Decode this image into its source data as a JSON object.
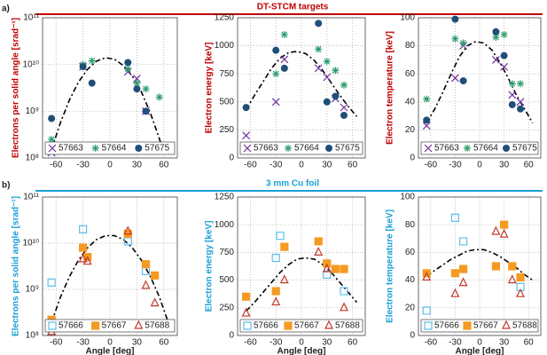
{
  "sections": [
    {
      "label": "a)",
      "title": "DT-STCM targets",
      "color": "#c00000"
    },
    {
      "label": "b)",
      "title": "3 mm Cu foil",
      "color": "#1a9fd6"
    }
  ],
  "chart_data": [
    {
      "type": "scatter",
      "ylabel": "Electrons per solid angle [srad⁻¹]",
      "label_color": "#c00000",
      "log_y": true,
      "grid": true,
      "xlim": [
        -75,
        75
      ],
      "xticks": [
        -60,
        -30,
        0,
        30,
        60
      ],
      "ylim": [
        100000000,
        100000000000
      ],
      "yticks": [
        {
          "value": 100000000,
          "label": "10⁸"
        },
        {
          "value": 1000000000,
          "label": "10⁹"
        },
        {
          "value": 10000000000,
          "label": "10¹⁰"
        },
        {
          "value": 100000000000,
          "label": "10¹¹"
        }
      ],
      "series": [
        {
          "name": "57663",
          "color": "#7030a0",
          "marker": "x",
          "x": [
            -65,
            -30,
            20,
            30,
            40
          ],
          "values": [
            130000000,
            9000000000,
            7000000000,
            5000000000,
            1000000000
          ]
        },
        {
          "name": "57664",
          "color": "#2e9e6e",
          "marker": "asterisk",
          "x": [
            -65,
            -30,
            -20,
            20,
            30,
            40,
            55
          ],
          "values": [
            250000000,
            10000000000,
            12000000000,
            8000000000,
            4000000000,
            3000000000,
            2000000000
          ]
        },
        {
          "name": "57675",
          "color": "#1f4e79",
          "marker": "dot",
          "x": [
            -65,
            -30,
            -20,
            20,
            30,
            40
          ],
          "values": [
            700000000,
            9000000000,
            4000000000,
            11000000000,
            3000000000,
            1000000000
          ]
        }
      ],
      "fit": {
        "color": "#000000",
        "x": [
          -65,
          -55,
          -45,
          -35,
          -25,
          -15,
          -5,
          5,
          15,
          25,
          35,
          45,
          55,
          60
        ],
        "values": [
          150000000,
          580000000,
          1750000000,
          4200000000,
          7900000000,
          11800000000,
          14000000000,
          13000000000,
          9500000000,
          5600000000,
          2600000000,
          920000000,
          260000000,
          130000000
        ]
      }
    },
    {
      "type": "scatter",
      "ylabel": "Electron energy [keV]",
      "label_color": "#c00000",
      "log_y": false,
      "grid": true,
      "xlim": [
        -75,
        75
      ],
      "xticks": [
        -60,
        -30,
        0,
        30,
        60
      ],
      "ylim": [
        0,
        1250
      ],
      "yticks": [
        0,
        250,
        500,
        750,
        1000,
        1250
      ],
      "series": [
        {
          "name": "57663",
          "color": "#7030a0",
          "marker": "x",
          "x": [
            -65,
            -30,
            -20,
            20,
            30,
            40,
            50
          ],
          "values": [
            200,
            500,
            880,
            800,
            720,
            530,
            450
          ]
        },
        {
          "name": "57664",
          "color": "#2e9e6e",
          "marker": "asterisk",
          "x": [
            -30,
            -20,
            20,
            30,
            40,
            50
          ],
          "values": [
            750,
            1100,
            970,
            860,
            780,
            650
          ]
        },
        {
          "name": "57675",
          "color": "#1f4e79",
          "marker": "dot",
          "x": [
            -65,
            -30,
            -20,
            20,
            30,
            40,
            50
          ],
          "values": [
            450,
            960,
            800,
            1200,
            500,
            550,
            380
          ]
        }
      ],
      "fit": {
        "color": "#000000",
        "x": [
          -65,
          -55,
          -45,
          -35,
          -25,
          -15,
          -5,
          5,
          15,
          25,
          35,
          45,
          55,
          65
        ],
        "values": [
          430,
          560,
          680,
          800,
          890,
          940,
          950,
          930,
          870,
          780,
          670,
          560,
          460,
          370
        ]
      }
    },
    {
      "type": "scatter",
      "ylabel": "Electron temperature [keV]",
      "label_color": "#c00000",
      "log_y": false,
      "grid": true,
      "xlim": [
        -75,
        75
      ],
      "xticks": [
        -60,
        -30,
        0,
        30,
        60
      ],
      "ylim": [
        0,
        100
      ],
      "yticks": [
        0,
        20,
        40,
        60,
        80,
        100
      ],
      "series": [
        {
          "name": "57663",
          "color": "#7030a0",
          "marker": "x",
          "x": [
            -65,
            -30,
            -20,
            20,
            30,
            40,
            50
          ],
          "values": [
            23,
            57,
            80,
            70,
            65,
            45,
            40
          ]
        },
        {
          "name": "57664",
          "color": "#2e9e6e",
          "marker": "asterisk",
          "x": [
            -65,
            -30,
            -20,
            20,
            30,
            40,
            50
          ],
          "values": [
            42,
            85,
            82,
            86,
            88,
            53,
            53
          ]
        },
        {
          "name": "57675",
          "color": "#1f4e79",
          "marker": "dot",
          "x": [
            -65,
            -30,
            -20,
            20,
            30,
            40,
            50
          ],
          "values": [
            27,
            99,
            55,
            90,
            73,
            38,
            35
          ]
        }
      ],
      "fit": {
        "color": "#000000",
        "x": [
          -65,
          -55,
          -45,
          -35,
          -25,
          -15,
          -5,
          5,
          15,
          25,
          35,
          45,
          55,
          65
        ],
        "values": [
          25,
          35,
          47,
          60,
          72,
          80,
          83,
          82,
          77,
          68,
          57,
          45,
          35,
          25
        ]
      }
    },
    {
      "type": "scatter",
      "ylabel": "Electrons per solid angle [srad⁻¹]",
      "xlabel": "Angle [deg]",
      "label_color": "#1a9fd6",
      "log_y": true,
      "grid": true,
      "xlim": [
        -75,
        75
      ],
      "xticks": [
        -60,
        -30,
        0,
        30,
        60
      ],
      "ylim": [
        100000000,
        100000000000
      ],
      "yticks": [
        {
          "value": 100000000,
          "label": "10⁸"
        },
        {
          "value": 1000000000,
          "label": "10⁹"
        },
        {
          "value": 10000000000,
          "label": "10¹⁰"
        },
        {
          "value": 100000000000,
          "label": "10¹¹"
        }
      ],
      "series": [
        {
          "name": "57666",
          "color": "#5bc0eb",
          "marker": "open-square",
          "x": [
            -65,
            -30,
            20,
            40
          ],
          "values": [
            1400000000,
            20000000000,
            11000000000,
            2500000000
          ]
        },
        {
          "name": "57667",
          "color": "#f59a23",
          "marker": "square",
          "x": [
            -65,
            -30,
            -25,
            20,
            40,
            50
          ],
          "values": [
            220000000,
            8000000000,
            5000000000,
            16000000000,
            3500000000,
            2000000000
          ]
        },
        {
          "name": "57688",
          "color": "#c0392b",
          "marker": "open-triangle",
          "x": [
            -65,
            -30,
            -25,
            20,
            40,
            50
          ],
          "values": [
            120000000,
            4500000000,
            4000000000,
            18000000000,
            1200000000,
            500000000
          ]
        }
      ],
      "fit": {
        "color": "#000000",
        "x": [
          -65,
          -55,
          -45,
          -35,
          -25,
          -15,
          -5,
          5,
          15,
          25,
          35,
          45,
          55,
          65
        ],
        "values": [
          190000000,
          690000000,
          1900000000,
          4300000000,
          7900000000,
          12000000000,
          14600000000,
          14600000000,
          12000000000,
          7900000000,
          4300000000,
          1900000000,
          690000000,
          190000000
        ]
      }
    },
    {
      "type": "scatter",
      "ylabel": "Electron energy [keV]",
      "xlabel": "Angle [deg]",
      "label_color": "#1a9fd6",
      "log_y": false,
      "grid": true,
      "xlim": [
        -75,
        75
      ],
      "xticks": [
        -60,
        -30,
        0,
        30,
        60
      ],
      "ylim": [
        0,
        1250
      ],
      "yticks": [
        0,
        250,
        500,
        750,
        1000,
        1250
      ],
      "series": [
        {
          "name": "57666",
          "color": "#5bc0eb",
          "marker": "open-square",
          "x": [
            -30,
            -25,
            30,
            50
          ],
          "values": [
            700,
            900,
            550,
            400
          ]
        },
        {
          "name": "57667",
          "color": "#f59a23",
          "marker": "square",
          "x": [
            -65,
            -30,
            -20,
            20,
            30,
            40,
            50
          ],
          "values": [
            350,
            400,
            800,
            850,
            650,
            600,
            600
          ]
        },
        {
          "name": "57688",
          "color": "#c0392b",
          "marker": "open-triangle",
          "x": [
            -65,
            -30,
            -20,
            20,
            30,
            50
          ],
          "values": [
            200,
            300,
            500,
            750,
            600,
            250
          ]
        }
      ],
      "fit": {
        "color": "#000000",
        "x": [
          -65,
          -55,
          -45,
          -35,
          -25,
          -15,
          -5,
          5,
          15,
          25,
          35,
          45,
          55,
          65
        ],
        "values": [
          220,
          300,
          390,
          480,
          570,
          640,
          690,
          700,
          690,
          640,
          570,
          480,
          390,
          300
        ]
      }
    },
    {
      "type": "scatter",
      "ylabel": "Electron temperature [keV]",
      "xlabel": "Angle [deg]",
      "label_color": "#1a9fd6",
      "log_y": false,
      "grid": true,
      "xlim": [
        -75,
        75
      ],
      "xticks": [
        -60,
        -30,
        0,
        30,
        60
      ],
      "ylim": [
        0,
        100
      ],
      "yticks": [
        0,
        20,
        40,
        60,
        80,
        100
      ],
      "series": [
        {
          "name": "57666",
          "color": "#5bc0eb",
          "marker": "open-square",
          "x": [
            -65,
            -30,
            -20,
            50
          ],
          "values": [
            18,
            85,
            68,
            35
          ]
        },
        {
          "name": "57667",
          "color": "#f59a23",
          "marker": "square",
          "x": [
            -65,
            -30,
            -20,
            20,
            30,
            40,
            50
          ],
          "values": [
            45,
            45,
            48,
            50,
            80,
            50,
            42
          ]
        },
        {
          "name": "57688",
          "color": "#c0392b",
          "marker": "open-triangle",
          "x": [
            -65,
            -30,
            -20,
            20,
            30,
            40,
            50
          ],
          "values": [
            42,
            30,
            38,
            75,
            73,
            40,
            30
          ]
        }
      ],
      "fit": {
        "color": "#000000",
        "x": [
          -65,
          -55,
          -45,
          -35,
          -25,
          -15,
          -5,
          5,
          15,
          25,
          35,
          45,
          55,
          65
        ],
        "values": [
          43,
          47,
          51,
          55,
          58,
          61,
          62,
          62,
          60,
          57,
          53,
          49,
          44,
          40
        ]
      }
    }
  ]
}
